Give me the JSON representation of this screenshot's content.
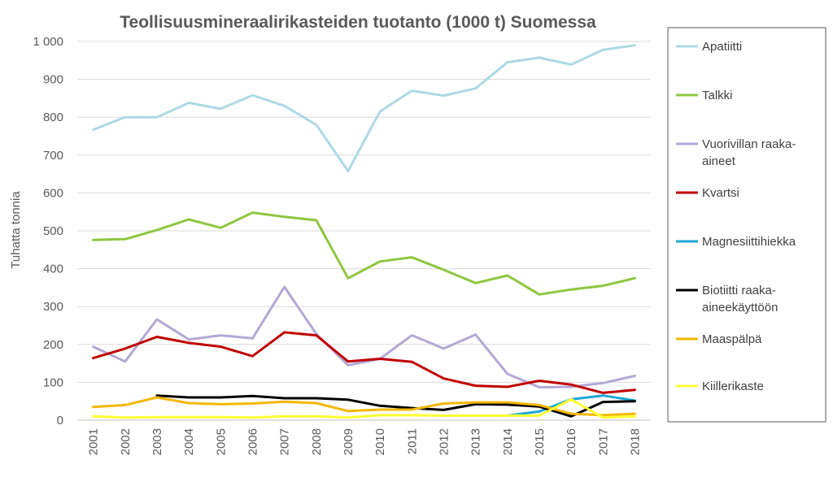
{
  "chart_data": {
    "type": "line",
    "title": "Teollisuusmineraalirikasteiden tuotanto (1000 t) Suomessa",
    "ylabel": "Tuhatta tonnia",
    "xlabel": "",
    "ylim": [
      0,
      1000
    ],
    "yticks": [
      {
        "value": 0,
        "label": "0"
      },
      {
        "value": 100,
        "label": "100"
      },
      {
        "value": 200,
        "label": "200"
      },
      {
        "value": 300,
        "label": "300"
      },
      {
        "value": 400,
        "label": "400"
      },
      {
        "value": 500,
        "label": "500"
      },
      {
        "value": 600,
        "label": "600"
      },
      {
        "value": 700,
        "label": "700"
      },
      {
        "value": 800,
        "label": "800"
      },
      {
        "value": 900,
        "label": "900"
      },
      {
        "value": 1000,
        "label": "1 000"
      }
    ],
    "grid": true,
    "legend_position": "right",
    "categories": [
      "2001",
      "2002",
      "2003",
      "2004",
      "2005",
      "2006",
      "2007",
      "2008",
      "2009",
      "2010",
      "2011",
      "2012",
      "2013",
      "2014",
      "2015",
      "2016",
      "2017",
      "2018"
    ],
    "series": [
      {
        "name": "Apatiitti",
        "color": "#add8e6",
        "legend_lines": [
          "Apatiitti"
        ],
        "values": [
          767,
          800,
          800,
          838,
          822,
          858,
          830,
          780,
          658,
          815,
          870,
          857,
          876,
          945,
          957,
          939,
          978,
          990
        ]
      },
      {
        "name": "Talkki",
        "color": "#8dc63f",
        "legend_lines": [
          "Talkki"
        ],
        "values": [
          476,
          478,
          502,
          530,
          508,
          548,
          537,
          528,
          375,
          419,
          430,
          397,
          362,
          382,
          332,
          345,
          355,
          375
        ]
      },
      {
        "name": "Vuorivillan raaka-aineet",
        "color": "#b4a7d6",
        "legend_lines": [
          "Vuorivillan raaka-",
          "aineet"
        ],
        "values": [
          194,
          155,
          266,
          213,
          224,
          216,
          352,
          228,
          145,
          162,
          224,
          189,
          226,
          122,
          87,
          88,
          98,
          117
        ]
      },
      {
        "name": "Kvartsi",
        "color": "#c00000",
        "legend_lines": [
          "Kvartsi"
        ],
        "values": [
          164,
          189,
          220,
          204,
          194,
          169,
          232,
          224,
          155,
          162,
          154,
          110,
          91,
          88,
          104,
          94,
          72,
          80
        ]
      },
      {
        "name": "Magnesiittihiekka",
        "color": "#1ca7d6",
        "legend_lines": [
          "Magnesiittihiekka"
        ],
        "values": [
          null,
          null,
          null,
          null,
          null,
          null,
          null,
          null,
          null,
          null,
          null,
          null,
          null,
          12,
          23,
          55,
          65,
          52
        ]
      },
      {
        "name": "Biotiitti raaka-aineekäyttöön",
        "color": "#000000",
        "legend_lines": [
          "Biotiitti raaka-",
          "aineekäyttöön"
        ],
        "values": [
          null,
          null,
          65,
          60,
          60,
          64,
          58,
          58,
          54,
          38,
          32,
          27,
          42,
          41,
          36,
          10,
          48,
          50
        ]
      },
      {
        "name": "Maaspälpä",
        "color": "#f2b705",
        "legend_lines": [
          "Maaspälpä"
        ],
        "values": [
          35,
          40,
          60,
          45,
          42,
          44,
          49,
          45,
          24,
          28,
          28,
          44,
          47,
          47,
          40,
          17,
          13,
          17
        ]
      },
      {
        "name": "Kiillerikaste",
        "color": "#ffff33",
        "legend_lines": [
          "Kiillerikaste"
        ],
        "values": [
          10,
          7,
          8,
          8,
          8,
          7,
          10,
          10,
          7,
          13,
          13,
          12,
          12,
          12,
          12,
          55,
          7,
          10
        ]
      }
    ]
  }
}
